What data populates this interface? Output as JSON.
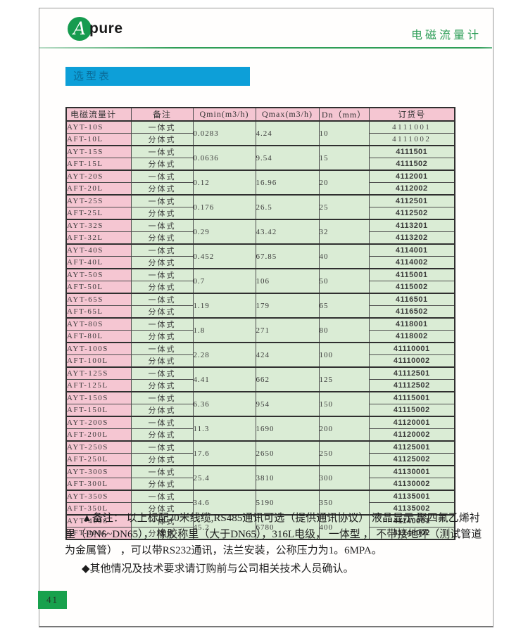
{
  "brand": {
    "logo_letter": "A",
    "logo_text": "pure"
  },
  "header": {
    "right_title": "电磁流量计"
  },
  "section": {
    "banner_title": "选型表"
  },
  "table": {
    "headers": [
      "电磁流量计",
      "备注",
      "Qmin(m3/h)",
      "Qmax(m3/h)",
      "Dn（mm）",
      "订货号"
    ],
    "groups": [
      {
        "qmin": "0.0283",
        "qmax": "4.24",
        "dn": "10",
        "rows": [
          {
            "model": "AYT-10S",
            "type": "一体式",
            "order": "4111001",
            "thin": true
          },
          {
            "model": "AFT-10L",
            "type": "分体式",
            "order": "4111002",
            "thin": true
          }
        ]
      },
      {
        "qmin": "0.0636",
        "qmax": "9.54",
        "dn": "15",
        "rows": [
          {
            "model": "AYT-15S",
            "type": "一体式",
            "order": "4111501",
            "thin": false
          },
          {
            "model": "AFT-15L",
            "type": "分体式",
            "order": "4111502",
            "thin": false
          }
        ]
      },
      {
        "qmin": "0.12",
        "qmax": "16.96",
        "dn": "20",
        "rows": [
          {
            "model": "AYT-20S",
            "type": "一体式",
            "order": "4112001",
            "thin": false
          },
          {
            "model": "AFT-20L",
            "type": "分体式",
            "order": "4112002",
            "thin": false
          }
        ]
      },
      {
        "qmin": "0.176",
        "qmax": "26.5",
        "dn": "25",
        "rows": [
          {
            "model": "AYT-25S",
            "type": "一体式",
            "order": "4112501",
            "thin": false
          },
          {
            "model": "AFT-25L",
            "type": "分体式",
            "order": "4112502",
            "thin": false
          }
        ]
      },
      {
        "qmin": "0.29",
        "qmax": "43.42",
        "dn": "32",
        "rows": [
          {
            "model": "AYT-32S",
            "type": "一体式",
            "order": "4113201",
            "thin": false
          },
          {
            "model": "AFT-32L",
            "type": "分体式",
            "order": "4113202",
            "thin": false
          }
        ]
      },
      {
        "qmin": "0.452",
        "qmax": "67.85",
        "dn": "40",
        "rows": [
          {
            "model": "AYT-40S",
            "type": "一体式",
            "order": "4114001",
            "thin": false
          },
          {
            "model": "AFT-40L",
            "type": "分体式",
            "order": "4114002",
            "thin": false
          }
        ]
      },
      {
        "qmin": "0.7",
        "qmax": "106",
        "dn": "50",
        "rows": [
          {
            "model": "AYT-50S",
            "type": "一体式",
            "order": "4115001",
            "thin": false
          },
          {
            "model": "AFT-50L",
            "type": "分体式",
            "order": "4115002",
            "thin": false
          }
        ]
      },
      {
        "qmin": "1.19",
        "qmax": "179",
        "dn": "65",
        "rows": [
          {
            "model": "AYT-65S",
            "type": "一体式",
            "order": "4116501",
            "thin": false
          },
          {
            "model": "AFT-65L",
            "type": "分体式",
            "order": "4116502",
            "thin": false
          }
        ]
      },
      {
        "qmin": "1.8",
        "qmax": "271",
        "dn": "80",
        "rows": [
          {
            "model": "AYT-80S",
            "type": "一体式",
            "order": "4118001",
            "thin": false
          },
          {
            "model": "AFT-80L",
            "type": "分体式",
            "order": "4118002",
            "thin": false
          }
        ]
      },
      {
        "qmin": "2.28",
        "qmax": "424",
        "dn": "100",
        "rows": [
          {
            "model": "AYT-100S",
            "type": "一体式",
            "order": "41110001",
            "thin": false
          },
          {
            "model": "AFT-100L",
            "type": "分体式",
            "order": "41110002",
            "thin": false
          }
        ]
      },
      {
        "qmin": "4.41",
        "qmax": "662",
        "dn": "125",
        "rows": [
          {
            "model": "AYT-125S",
            "type": "一体式",
            "order": "41112501",
            "thin": false
          },
          {
            "model": "AFT-125L",
            "type": "分体式",
            "order": "41112502",
            "thin": false
          }
        ]
      },
      {
        "qmin": "6.36",
        "qmax": "954",
        "dn": "150",
        "rows": [
          {
            "model": "AYT-150S",
            "type": "一体式",
            "order": "41115001",
            "thin": false
          },
          {
            "model": "AFT-150L",
            "type": "分体式",
            "order": "41115002",
            "thin": false
          }
        ]
      },
      {
        "qmin": "11.3",
        "qmax": "1690",
        "dn": "200",
        "rows": [
          {
            "model": "AYT-200S",
            "type": "一体式",
            "order": "41120001",
            "thin": false
          },
          {
            "model": "AFT-200L",
            "type": "分体式",
            "order": "41120002",
            "thin": false
          }
        ]
      },
      {
        "qmin": "17.6",
        "qmax": "2650",
        "dn": "250",
        "rows": [
          {
            "model": "AYT-250S",
            "type": "一体式",
            "order": "41125001",
            "thin": false
          },
          {
            "model": "AFT-250L",
            "type": "分体式",
            "order": "41125002",
            "thin": false
          }
        ]
      },
      {
        "qmin": "25.4",
        "qmax": "3810",
        "dn": "300",
        "rows": [
          {
            "model": "AYT-300S",
            "type": "一体式",
            "order": "41130001",
            "thin": false
          },
          {
            "model": "AFT-300L",
            "type": "分体式",
            "order": "41130002",
            "thin": false
          }
        ]
      },
      {
        "qmin": "34.6",
        "qmax": "5190",
        "dn": "350",
        "rows": [
          {
            "model": "AYT-350S",
            "type": "一体式",
            "order": "41135001",
            "thin": false
          },
          {
            "model": "AFT-350L",
            "type": "分体式",
            "order": "41135002",
            "thin": false
          }
        ]
      },
      {
        "qmin": "45.2",
        "qmax": "6780",
        "dn": "400",
        "rows": [
          {
            "model": "AYT-400S",
            "type": "一体式",
            "order": "41140001",
            "thin": false
          },
          {
            "model": "AFT-400L",
            "type": "分体式",
            "order": "41140002",
            "thin": false
          }
        ]
      }
    ]
  },
  "notes": {
    "note1_lines": [
      "▲备注： 以上标配20米线缆,RS485通讯可选（提供通讯协议） 液晶显示 聚四氟乙烯衬",
      "里（DN6~DN65）， 橡胶称里（大于DN65），316L电级， 一体型 ， 不带接地环（测试管道",
      "为金属管） ，可以带RS232通讯，法兰安装，公称压力为1。6MPA。"
    ],
    "note2": "◆其他情况及技术要求请订购前与公司相关技术人员确认。"
  },
  "footer": {
    "page_number": "41"
  },
  "colors": {
    "brand_green": "#169b4f",
    "header_green": "#2e9e58",
    "banner_blue": "#0d9fd8",
    "banner_text": "#0a6d9a",
    "cell_pink": "#f5c6d2",
    "cell_green": "#daecd5",
    "page_num_green": "#18a14d"
  }
}
